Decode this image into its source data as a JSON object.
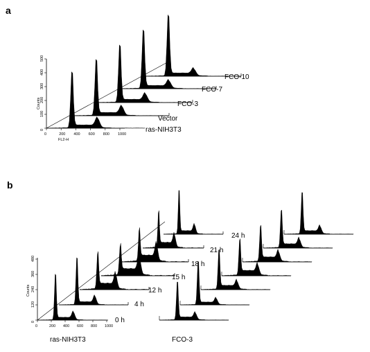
{
  "chart_data": [
    {
      "panel_label": "a",
      "type": "area",
      "title": "",
      "xlabel": "FL2-H",
      "ylabel": "Counts",
      "x_ticks": [
        "0",
        "200",
        "400",
        "600",
        "800",
        "1000"
      ],
      "y_ticks": [
        "0",
        "100",
        "200",
        "300",
        "400",
        "500"
      ],
      "xlim": [
        0,
        1023
      ],
      "ylim": [
        0,
        500
      ],
      "series": [
        {
          "name": "ras-NIH3T3",
          "g1_peak_x": 240,
          "g1_peak_height": 450,
          "g2_peak_x": 480,
          "g2_peak_height": 65
        },
        {
          "name": "Vector",
          "g1_peak_x": 240,
          "g1_peak_height": 450,
          "g2_peak_x": 480,
          "g2_peak_height": 60
        },
        {
          "name": "FCO-3",
          "g1_peak_x": 240,
          "g1_peak_height": 460,
          "g2_peak_x": 480,
          "g2_peak_height": 55
        },
        {
          "name": "FCO-7",
          "g1_peak_x": 240,
          "g1_peak_height": 470,
          "g2_peak_x": 480,
          "g2_peak_height": 50
        },
        {
          "name": "FCO-10",
          "g1_peak_x": 240,
          "g1_peak_height": 490,
          "g2_peak_x": 480,
          "g2_peak_height": 45
        }
      ]
    },
    {
      "panel_label": "b",
      "type": "area",
      "title": "",
      "xlabel": "",
      "ylabel": "Counts",
      "x_ticks": [
        "0",
        "200",
        "400",
        "600",
        "800",
        "1000"
      ],
      "y_ticks": [
        "0",
        "120",
        "240",
        "360",
        "480"
      ],
      "ylim": [
        0,
        480
      ],
      "time_labels": [
        "0 h",
        "4 h",
        "12 h",
        "15 h",
        "18 h",
        "21 h",
        "24 h"
      ],
      "groups": [
        {
          "name": "ras-NIH3T3",
          "series": [
            {
              "name": "0 h",
              "g1_peak_height": 400,
              "s_phase": 40,
              "g2_peak_height": 70
            },
            {
              "name": "4 h",
              "g1_peak_height": 410,
              "s_phase": 45,
              "g2_peak_height": 75
            },
            {
              "name": "12 h",
              "g1_peak_height": 300,
              "s_phase": 90,
              "g2_peak_height": 130
            },
            {
              "name": "15 h",
              "g1_peak_height": 240,
              "s_phase": 100,
              "g2_peak_height": 160
            },
            {
              "name": "18 h",
              "g1_peak_height": 260,
              "s_phase": 95,
              "g2_peak_height": 150
            },
            {
              "name": "21 h",
              "g1_peak_height": 300,
              "s_phase": 80,
              "g2_peak_height": 110
            },
            {
              "name": "24 h",
              "g1_peak_height": 380,
              "s_phase": 50,
              "g2_peak_height": 80
            }
          ]
        },
        {
          "name": "FCO-3",
          "series": [
            {
              "name": "0 h",
              "g1_peak_height": 330,
              "s_phase": 45,
              "g2_peak_height": 60
            },
            {
              "name": "4 h",
              "g1_peak_height": 380,
              "s_phase": 40,
              "g2_peak_height": 55
            },
            {
              "name": "12 h",
              "g1_peak_height": 340,
              "s_phase": 60,
              "g2_peak_height": 70
            },
            {
              "name": "15 h",
              "g1_peak_height": 300,
              "s_phase": 75,
              "g2_peak_height": 90
            },
            {
              "name": "18 h",
              "g1_peak_height": 300,
              "s_phase": 70,
              "g2_peak_height": 85
            },
            {
              "name": "21 h",
              "g1_peak_height": 320,
              "s_phase": 60,
              "g2_peak_height": 75
            },
            {
              "name": "24 h",
              "g1_peak_height": 360,
              "s_phase": 50,
              "g2_peak_height": 65
            }
          ]
        }
      ]
    }
  ]
}
